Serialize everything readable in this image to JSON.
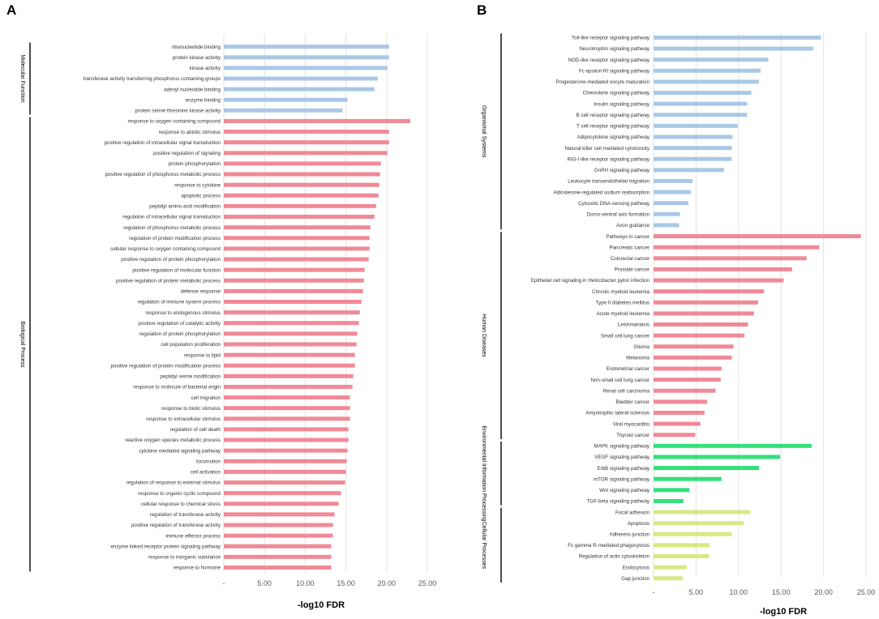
{
  "chart_data": [
    {
      "panel": "A",
      "type": "bar",
      "orientation": "horizontal",
      "xlabel": "-log10 FDR",
      "xlim": [
        0,
        25
      ],
      "xticks": [
        "-",
        "5.00",
        "10.00",
        "15.00",
        "20.00",
        "25.00"
      ],
      "grid": true,
      "groups": [
        {
          "name": "Molecular Function",
          "color": "#a9c8e6",
          "categories": [
            "ribonucleotide binding",
            "protein kinase activity",
            "kinase activity",
            "transferase activity transferring phosphorus containing groups",
            "adenyl nucleotide binding",
            "enzyme binding",
            "protein serine threonine kinase activity"
          ],
          "values": [
            20.3,
            20.3,
            20.1,
            18.9,
            18.5,
            15.2,
            14.6
          ]
        },
        {
          "name": "Biological Process",
          "color": "#f08a96",
          "categories": [
            "response to oxygen containing compound",
            "response to abiotic stimulus",
            "positive regulation of intracellular signal transduction",
            "positive regulation of signaling",
            "protein phosphorylation",
            "positive regulation of phosphorus metabolic process",
            "response to cytokine",
            "apoptotic process",
            "peptidyl amino acid modification",
            "regulation of intracellular signal transduction",
            "regulation of phosphorus metabolic process",
            "regulation of protein modification process",
            "cellular response to oxygen containing compound",
            "positive regulation of protein phosphorylation",
            "positive regulation of molecular function",
            "positive regulation of protein metabolic process",
            "defense response",
            "regulation of immune system process",
            "response to endogenous stimulus",
            "positive regulation of catalytic activity",
            "regulation of protein phosphorylation",
            "cell population proliferation",
            "response to lipid",
            "positive regulation of protein modification process",
            "peptidyl serine modification",
            "response to molecule of bacterial origin",
            "cell migration",
            "response to biotic stimulus",
            "response to extracellular stimulus",
            "regulation of cell death",
            "reactive oxygen species metabolic process",
            "cytokine mediated signaling pathway",
            "locomotion",
            "cell activation",
            "regulation of response to external stimulus",
            "response to organic cyclic compound",
            "cellular response to chemical stress",
            "regulation of transferase activity",
            "positive regulation of transferase activity",
            "immune effector process",
            "enzyme linked receptor protein signaling pathway",
            "response to inorganic substance",
            "response to hormone"
          ],
          "values": [
            22.9,
            20.3,
            20.3,
            20.1,
            19.3,
            19.2,
            19.1,
            19.0,
            18.7,
            18.5,
            18.0,
            17.9,
            17.9,
            17.8,
            17.3,
            17.2,
            17.1,
            16.9,
            16.7,
            16.6,
            16.4,
            16.3,
            16.1,
            16.1,
            15.9,
            15.8,
            15.5,
            15.5,
            15.5,
            15.3,
            15.3,
            15.2,
            15.1,
            15.0,
            14.9,
            14.4,
            14.1,
            13.6,
            13.4,
            13.4,
            13.2,
            13.2,
            13.2
          ]
        }
      ]
    },
    {
      "panel": "B",
      "type": "bar",
      "orientation": "horizontal",
      "xlabel": "-log10 FDR",
      "xlim": [
        0,
        25
      ],
      "xticks": [
        "-",
        "5.00",
        "10.00",
        "15.00",
        "20.00",
        "25.00"
      ],
      "grid": true,
      "groups": [
        {
          "name": "Organismal Systems",
          "color": "#a9c8e6",
          "categories": [
            "Toll-like receptor signaling pathway",
            "Neurotrophin signaling pathway",
            "NOD-like receptor signaling pathway",
            "Fc epsilon RI signaling pathway",
            "Progesterone-mediated oocyte maturation",
            "Chemokine signaling pathway",
            "Insulin signaling pathway",
            "B cell receptor signaling pathway",
            "T cell receptor signaling pathway",
            "Adipocytokine signaling pathway",
            "Natural killer cell mediated cytotoxicity",
            "RIG-I-like receptor signaling pathway",
            "GnRH signaling pathway",
            "Leukocyte transendothelial migration",
            "Aldosterone-regulated sodium reabsorption",
            "Cytosolic DNA-sensing pathway",
            "Dorso-ventral axis formation",
            "Axon guidance"
          ],
          "values": [
            19.7,
            18.8,
            13.5,
            12.6,
            12.4,
            11.5,
            11.0,
            11.0,
            9.9,
            9.3,
            9.2,
            9.2,
            8.3,
            4.6,
            4.4,
            4.1,
            3.1,
            3.0
          ]
        },
        {
          "name": "Human Diseases",
          "color": "#f08a96",
          "categories": [
            "Pathways in cancer",
            "Pancreatic cancer",
            "Colorectal cancer",
            "Prostate cancer",
            "Epithelial cell signaling in Helicobacter pylori infection",
            "Chronic myeloid leukemia",
            "Type II diabetes mellitus",
            "Acute myeloid leukemia",
            "Leishmaniasis",
            "Small cell lung cancer",
            "Glioma",
            "Melanoma",
            "Endometrial cancer",
            "Non-small cell lung cancer",
            "Renal cell carcinoma",
            "Bladder cancer",
            "Amyotrophic lateral sclerosis",
            "Viral myocarditis",
            "Thyroid cancer"
          ],
          "values": [
            24.4,
            19.5,
            18.0,
            16.3,
            15.3,
            13.0,
            12.3,
            11.8,
            11.1,
            10.7,
            9.4,
            9.2,
            8.0,
            7.9,
            7.3,
            6.3,
            6.0,
            5.5,
            4.9
          ]
        },
        {
          "name": "Environmental Information Processing",
          "color": "#33e07a",
          "categories": [
            "MAPK signaling pathway",
            "VEGF signaling pathway",
            "ErbB signaling pathway",
            "mTOR signaling pathway",
            "Wnt signaling pathway",
            "TGF-beta signaling pathway"
          ],
          "values": [
            18.6,
            14.9,
            12.4,
            8.0,
            4.2,
            3.5
          ]
        },
        {
          "name": "Cellular Processes",
          "color": "#d8e884",
          "categories": [
            "Focal adhesion",
            "Apoptosis",
            "Adherens junction",
            "Fc gamma R-mediated phagocytosis",
            "Regulation of actin cytoskeleton",
            "Endocytosis",
            "Gap junction"
          ],
          "values": [
            11.4,
            10.6,
            9.2,
            6.6,
            6.5,
            3.9,
            3.4
          ]
        }
      ]
    }
  ]
}
